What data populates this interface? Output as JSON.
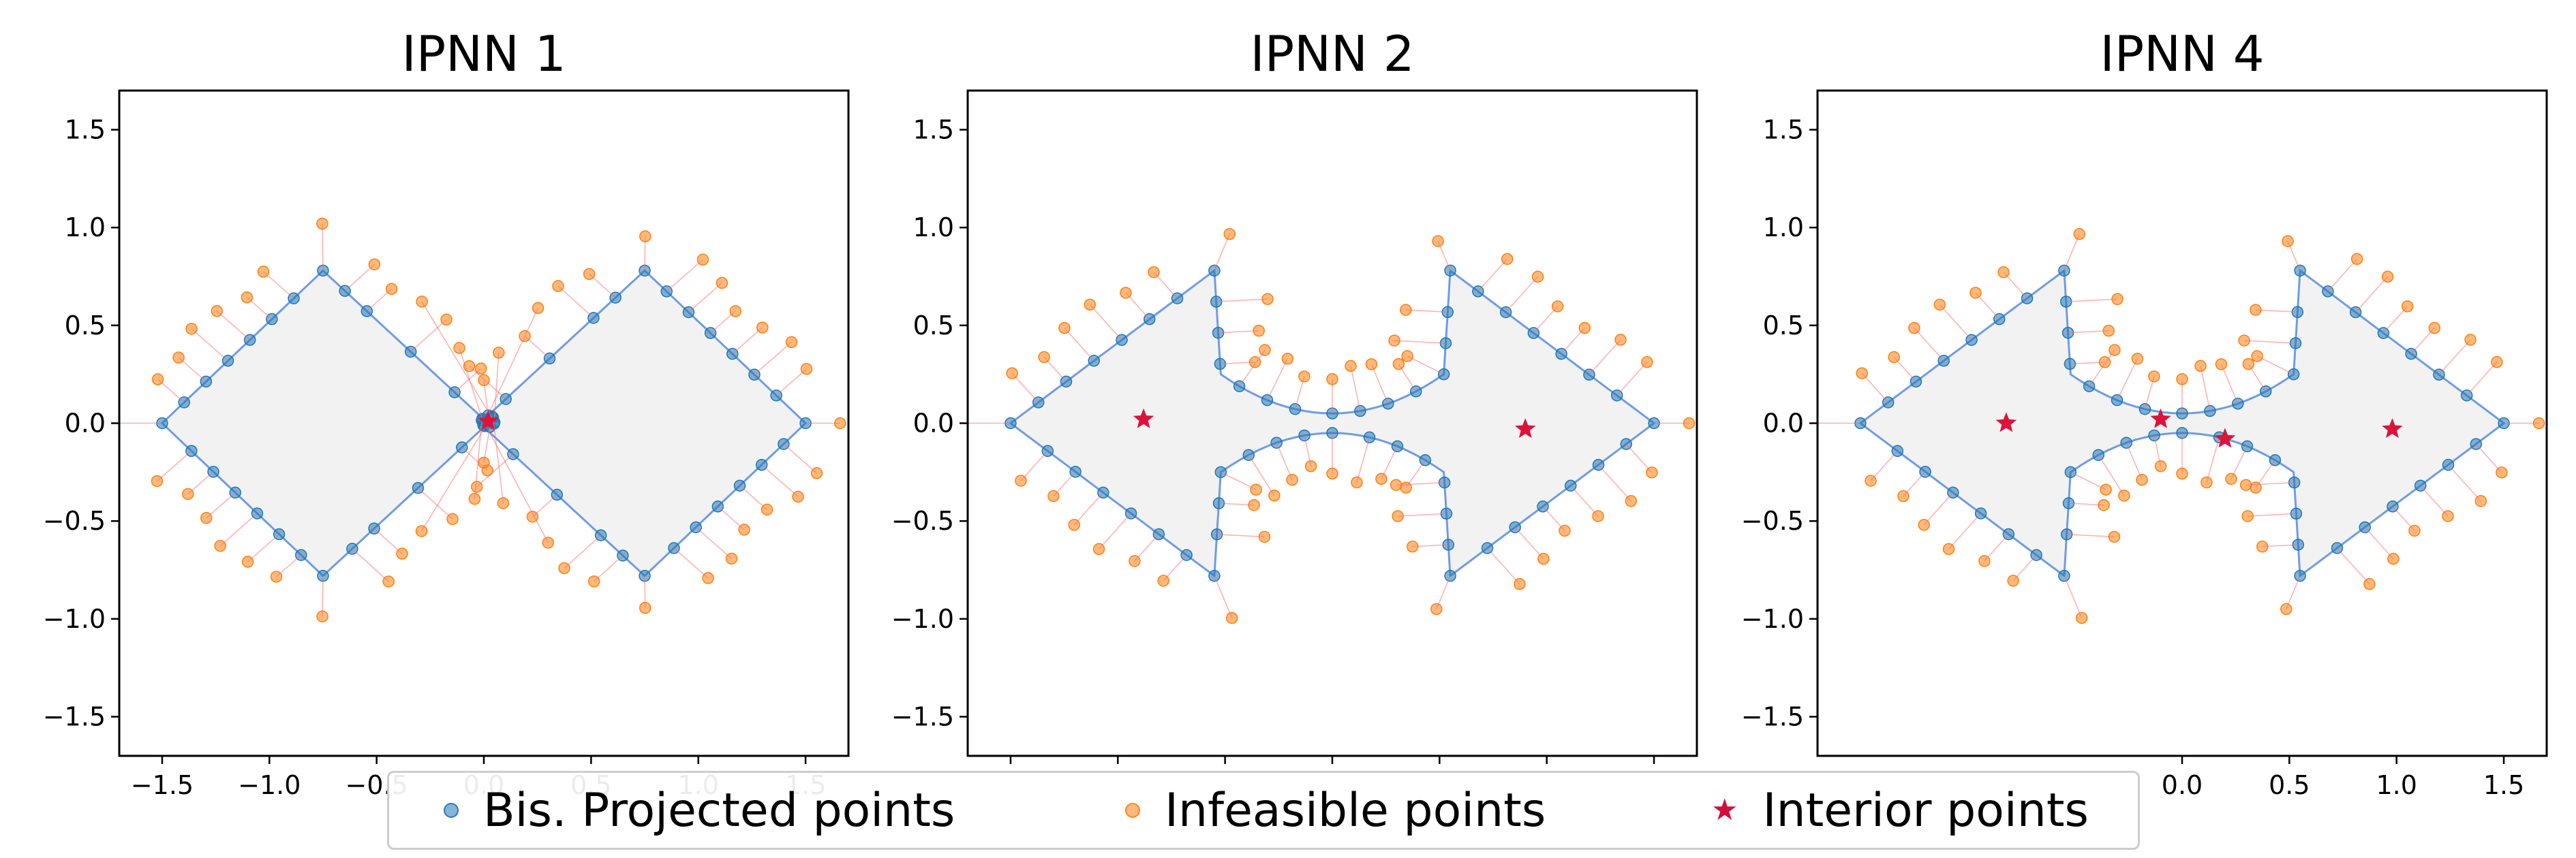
{
  "colors": {
    "projected": "#1f77b4",
    "infeasible": "#ff7f0e",
    "interior": "#dc143c",
    "boundary": "#6f9be6",
    "link": "#ff6b6b",
    "fill": "#f2f2f2"
  },
  "legend": {
    "projected": "Bis. Projected points",
    "infeasible": "Infeasible points",
    "interior": "Interior points"
  },
  "chart_data": [
    {
      "type": "scatter",
      "title": "IPNN 1",
      "xlim": [
        -1.7,
        1.7
      ],
      "ylim": [
        -1.7,
        1.7
      ],
      "xticks": [
        -1.5,
        -1.0,
        -0.5,
        0.0,
        0.5,
        1.0,
        1.5
      ],
      "xtick_labels": [
        "−1.5",
        "−1.0",
        "−0.5",
        "0.0",
        "0.5",
        "1.0",
        "1.5"
      ],
      "yticks": [
        -1.5,
        -1.0,
        -0.5,
        0.0,
        0.5,
        1.0,
        1.5
      ],
      "ytick_labels": [
        "−1.5",
        "−1.0",
        "−0.5",
        "0.0",
        "0.5",
        "1.0",
        "1.5"
      ],
      "series": [
        {
          "name": "Bis. Projected points",
          "description": "projections onto boundary; many collapse at origin"
        },
        {
          "name": "Infeasible points"
        },
        {
          "name": "Interior points",
          "points": [
            [
              0.02,
              0.01
            ]
          ]
        }
      ]
    },
    {
      "type": "scatter",
      "title": "IPNN 2",
      "xlim": [
        -1.7,
        1.7
      ],
      "ylim": [
        -1.7,
        1.7
      ],
      "yticks": [
        -1.5,
        -1.0,
        -0.5,
        0.0,
        0.5,
        1.0,
        1.5
      ],
      "ytick_labels": [
        "−1.5",
        "−1.0",
        "−0.5",
        "0.0",
        "0.5",
        "1.0",
        "1.5"
      ],
      "series": [
        {
          "name": "Bis. Projected points"
        },
        {
          "name": "Infeasible points"
        },
        {
          "name": "Interior points",
          "points": [
            [
              -0.88,
              0.02
            ],
            [
              0.9,
              -0.03
            ]
          ]
        }
      ]
    },
    {
      "type": "scatter",
      "title": "IPNN 4",
      "xlim": [
        -1.7,
        1.7
      ],
      "ylim": [
        -1.7,
        1.7
      ],
      "xticks": [
        0.0,
        0.5,
        1.0,
        1.5
      ],
      "xtick_labels": [
        "0.0",
        "0.5",
        "1.0",
        "1.5"
      ],
      "yticks": [
        -1.5,
        -1.0,
        -0.5,
        0.0,
        0.5,
        1.0,
        1.5
      ],
      "ytick_labels": [
        "−1.5",
        "−1.0",
        "−0.5",
        "0.0",
        "0.5",
        "1.0",
        "1.5"
      ],
      "series": [
        {
          "name": "Bis. Projected points"
        },
        {
          "name": "Infeasible points"
        },
        {
          "name": "Interior points",
          "points": [
            [
              -0.82,
              0.0
            ],
            [
              -0.1,
              0.02
            ],
            [
              0.2,
              -0.08
            ],
            [
              0.98,
              -0.03
            ]
          ]
        }
      ]
    }
  ]
}
